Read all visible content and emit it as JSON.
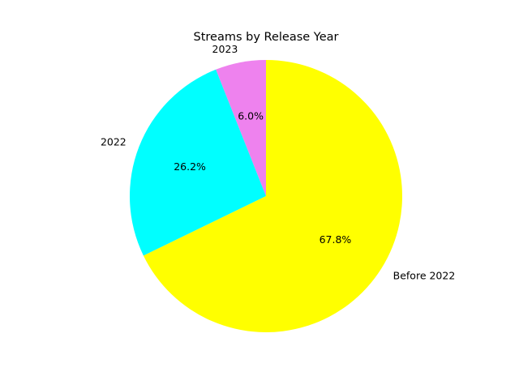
{
  "chart_data": {
    "type": "pie",
    "title": "Streams by Release Year",
    "slices": [
      {
        "label": "2023",
        "value": 6.0,
        "pct_label": "6.0%",
        "color": "#ee82ee"
      },
      {
        "label": "2022",
        "value": 26.2,
        "pct_label": "26.2%",
        "color": "#00ffff"
      },
      {
        "label": "Before 2022",
        "value": 67.8,
        "pct_label": "67.8%",
        "color": "#ffff00"
      }
    ],
    "start_angle": 90,
    "direction": "counterclockwise"
  }
}
